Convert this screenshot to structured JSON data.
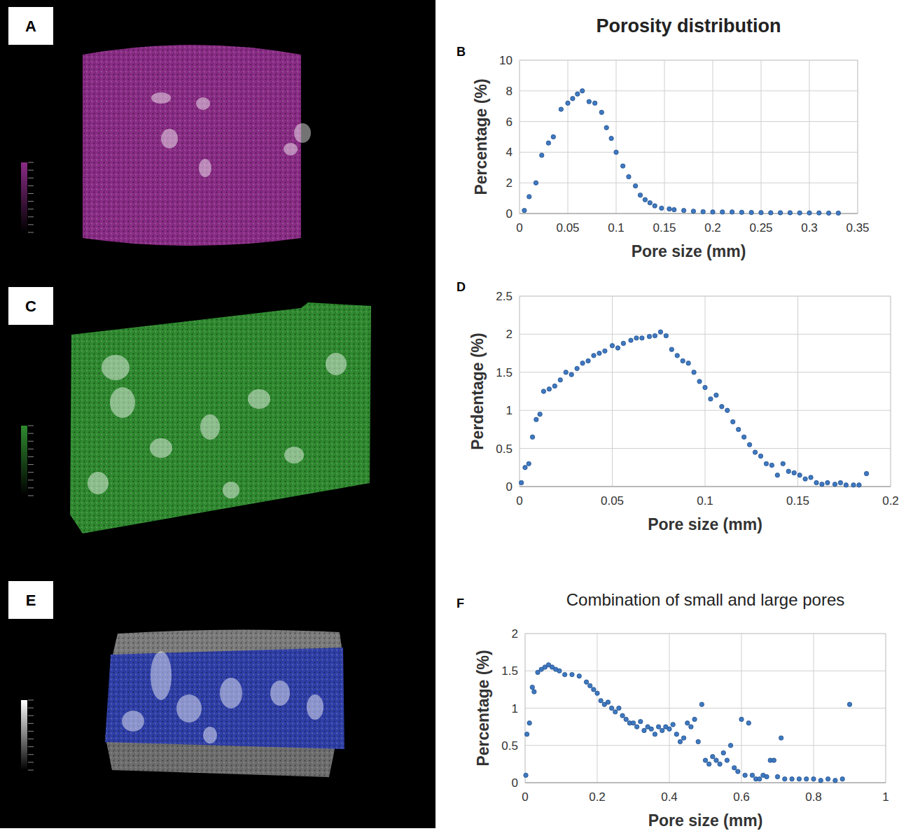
{
  "images": [
    {
      "panel": "A",
      "color": "#8a2c86"
    },
    {
      "panel": "C",
      "color": "#2f8a2f"
    },
    {
      "panel": "E",
      "color": "#2f3fa8"
    }
  ],
  "chart_data": [
    {
      "type": "scatter",
      "panel": "B",
      "title": "Porosity distribution",
      "xlabel": "Pore size (mm)",
      "ylabel": "Percentage (%)",
      "x": [
        0.005,
        0.01,
        0.017,
        0.023,
        0.03,
        0.035,
        0.043,
        0.05,
        0.055,
        0.06,
        0.065,
        0.072,
        0.078,
        0.085,
        0.09,
        0.095,
        0.1,
        0.107,
        0.113,
        0.12,
        0.125,
        0.13,
        0.135,
        0.14,
        0.147,
        0.155,
        0.16,
        0.17,
        0.18,
        0.19,
        0.2,
        0.21,
        0.22,
        0.23,
        0.24,
        0.25,
        0.26,
        0.27,
        0.28,
        0.29,
        0.3,
        0.31,
        0.32,
        0.33
      ],
      "values": [
        0.2,
        1.1,
        2.0,
        3.8,
        4.6,
        5.0,
        6.8,
        7.2,
        7.5,
        7.8,
        8.0,
        7.3,
        7.2,
        6.6,
        5.6,
        4.9,
        4.0,
        3.1,
        2.4,
        1.8,
        1.2,
        0.9,
        0.7,
        0.5,
        0.35,
        0.3,
        0.25,
        0.2,
        0.15,
        0.12,
        0.1,
        0.1,
        0.1,
        0.08,
        0.07,
        0.06,
        0.05,
        0.05,
        0.05,
        0.04,
        0.04,
        0.04,
        0.03,
        0.03
      ],
      "xlim": [
        0,
        0.35
      ],
      "xticks": [
        0,
        0.05,
        0.1,
        0.15,
        0.2,
        0.25,
        0.3,
        0.35
      ],
      "ylim": [
        0,
        10
      ],
      "yticks": [
        0,
        2,
        4,
        6,
        8,
        10
      ],
      "grid": true,
      "color": "#3f78c0",
      "marker": "circle"
    },
    {
      "type": "scatter",
      "panel": "D",
      "xlabel": "Pore size (mm)",
      "ylabel": "Perdentage (%)",
      "x": [
        0.001,
        0.003,
        0.005,
        0.007,
        0.009,
        0.011,
        0.013,
        0.016,
        0.019,
        0.022,
        0.025,
        0.028,
        0.031,
        0.034,
        0.037,
        0.04,
        0.043,
        0.046,
        0.05,
        0.053,
        0.056,
        0.06,
        0.063,
        0.066,
        0.07,
        0.073,
        0.076,
        0.079,
        0.082,
        0.085,
        0.088,
        0.091,
        0.094,
        0.097,
        0.1,
        0.103,
        0.106,
        0.109,
        0.112,
        0.115,
        0.118,
        0.121,
        0.124,
        0.127,
        0.13,
        0.133,
        0.136,
        0.139,
        0.142,
        0.145,
        0.148,
        0.151,
        0.154,
        0.157,
        0.16,
        0.163,
        0.166,
        0.17,
        0.173,
        0.176,
        0.18,
        0.183,
        0.187
      ],
      "values": [
        0.05,
        0.25,
        0.3,
        0.65,
        0.88,
        0.95,
        1.25,
        1.28,
        1.32,
        1.4,
        1.5,
        1.47,
        1.55,
        1.62,
        1.65,
        1.72,
        1.75,
        1.78,
        1.85,
        1.82,
        1.88,
        1.92,
        1.95,
        1.95,
        1.97,
        1.98,
        2.03,
        1.98,
        1.8,
        1.72,
        1.65,
        1.62,
        1.5,
        1.38,
        1.3,
        1.15,
        1.2,
        1.05,
        1.0,
        0.85,
        0.75,
        0.65,
        0.55,
        0.45,
        0.4,
        0.3,
        0.28,
        0.15,
        0.3,
        0.2,
        0.18,
        0.15,
        0.1,
        0.12,
        0.05,
        0.03,
        0.05,
        0.03,
        0.05,
        0.02,
        0.02,
        0.02,
        0.17
      ],
      "xlim": [
        0,
        0.2
      ],
      "xticks": [
        0,
        0.05,
        0.1,
        0.15,
        0.2
      ],
      "ylim": [
        0,
        2.5
      ],
      "yticks": [
        0,
        0.5,
        1,
        1.5,
        2,
        2.5
      ],
      "grid": true,
      "color": "#3f78c0",
      "marker": "circle"
    },
    {
      "type": "scatter",
      "panel": "F",
      "title": "Combination of small and large pores",
      "xlabel": "Pore size (mm)",
      "ylabel": "Percentage (%)",
      "x": [
        0.002,
        0.005,
        0.012,
        0.02,
        0.025,
        0.035,
        0.045,
        0.055,
        0.065,
        0.075,
        0.085,
        0.095,
        0.11,
        0.13,
        0.15,
        0.17,
        0.18,
        0.19,
        0.2,
        0.21,
        0.22,
        0.23,
        0.24,
        0.25,
        0.26,
        0.27,
        0.28,
        0.29,
        0.3,
        0.31,
        0.32,
        0.33,
        0.34,
        0.35,
        0.36,
        0.37,
        0.38,
        0.39,
        0.4,
        0.41,
        0.42,
        0.43,
        0.44,
        0.45,
        0.46,
        0.47,
        0.48,
        0.49,
        0.5,
        0.51,
        0.52,
        0.53,
        0.54,
        0.55,
        0.56,
        0.57,
        0.58,
        0.59,
        0.6,
        0.61,
        0.62,
        0.63,
        0.64,
        0.65,
        0.66,
        0.67,
        0.68,
        0.69,
        0.7,
        0.71,
        0.72,
        0.74,
        0.76,
        0.78,
        0.8,
        0.82,
        0.84,
        0.86,
        0.88,
        0.9
      ],
      "values": [
        0.1,
        0.65,
        0.8,
        1.28,
        1.22,
        1.48,
        1.52,
        1.55,
        1.58,
        1.55,
        1.52,
        1.5,
        1.45,
        1.45,
        1.43,
        1.35,
        1.3,
        1.25,
        1.2,
        1.1,
        1.05,
        1.08,
        1.0,
        0.95,
        1.0,
        0.9,
        0.85,
        0.8,
        0.8,
        0.75,
        0.82,
        0.7,
        0.75,
        0.72,
        0.65,
        0.75,
        0.7,
        0.75,
        0.72,
        0.78,
        0.65,
        0.55,
        0.6,
        0.8,
        0.75,
        0.85,
        0.55,
        1.05,
        0.3,
        0.25,
        0.35,
        0.3,
        0.25,
        0.4,
        0.3,
        0.5,
        0.2,
        0.15,
        0.85,
        0.1,
        0.8,
        0.1,
        0.05,
        0.05,
        0.1,
        0.08,
        0.3,
        0.3,
        0.08,
        0.6,
        0.05,
        0.05,
        0.05,
        0.05,
        0.05,
        0.03,
        0.05,
        0.03,
        0.05,
        1.05
      ],
      "xlim": [
        0,
        1
      ],
      "xticks": [
        0,
        0.2,
        0.4,
        0.6,
        0.8,
        1
      ],
      "ylim": [
        0,
        2
      ],
      "yticks": [
        0,
        0.5,
        1,
        1.5,
        2
      ],
      "grid": true,
      "color": "#3f78c0",
      "marker": "circle"
    }
  ]
}
